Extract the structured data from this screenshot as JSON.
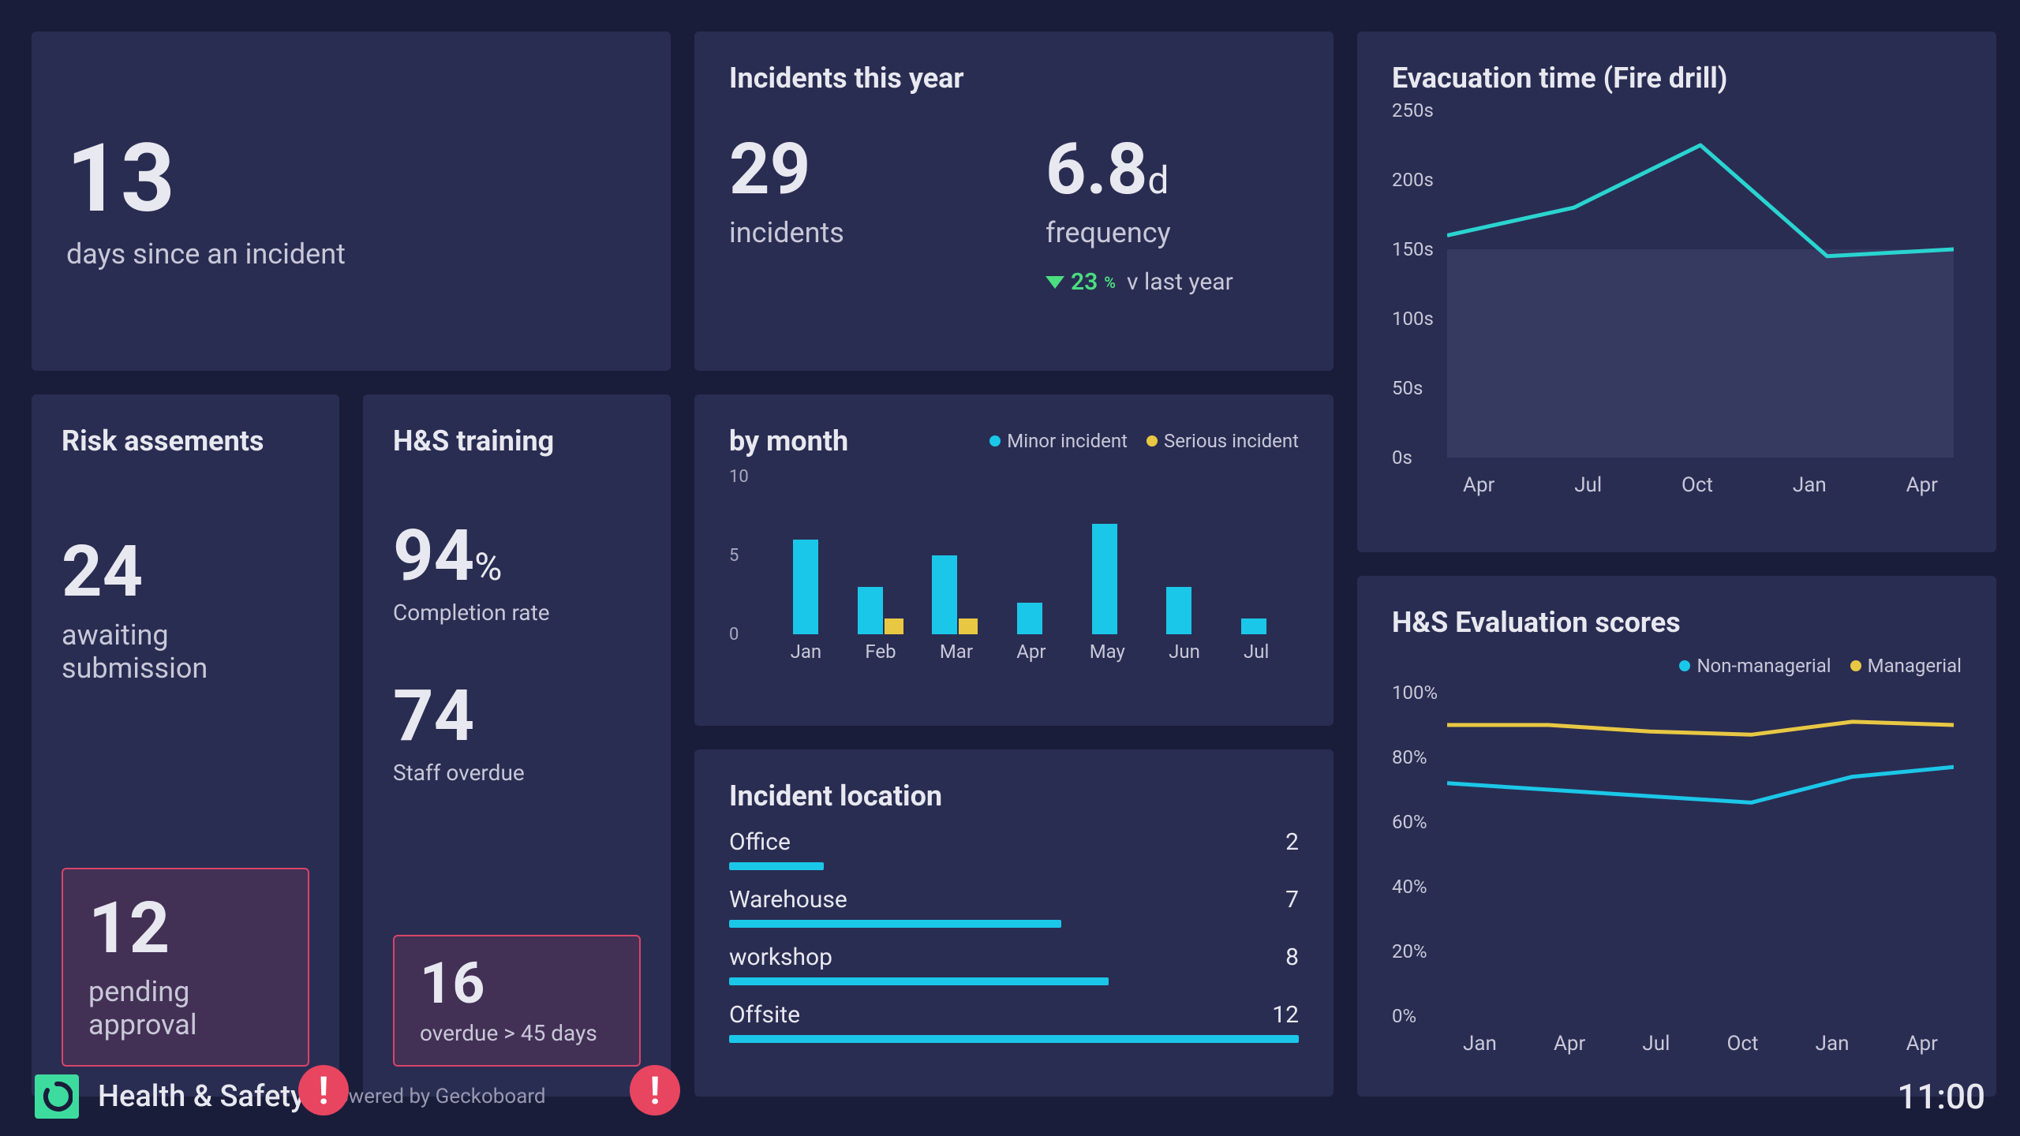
{
  "colors": {
    "card_bg": "#2a2d52",
    "page_bg": "#1a1d3a",
    "text": "#e8e8f0",
    "muted": "#c8c8d8",
    "cyan": "#1bc7e8",
    "yellow": "#e8c843",
    "green": "#4ade80",
    "alert": "#e84560",
    "alert_border": "#d9446b"
  },
  "days_since": {
    "value": "13",
    "label": "days since an incident"
  },
  "incidents_year": {
    "title": "Incidents this year",
    "count": "29",
    "count_label": "incidents",
    "freq": "6.8",
    "freq_unit": "d",
    "freq_label": "frequency",
    "delta_value": "23",
    "delta_pct": "%",
    "delta_suffix": "v last year"
  },
  "risk": {
    "title": "Risk assements",
    "awaiting_value": "24",
    "awaiting_label": "awaiting submission",
    "pending_value": "12",
    "pending_label": "pending approval"
  },
  "training": {
    "title": "H&S training",
    "completion_value": "94",
    "completion_pct": "%",
    "completion_label": "Completion rate",
    "overdue_value": "74",
    "overdue_label": "Staff overdue",
    "critical_value": "16",
    "critical_label": "overdue > 45 days"
  },
  "by_month": {
    "title": "by month",
    "type": "bar",
    "y_max": 10,
    "y_ticks": [
      "0",
      "5",
      "10"
    ],
    "categories": [
      "Jan",
      "Feb",
      "Mar",
      "Apr",
      "May",
      "Jun",
      "Jul"
    ],
    "minor": [
      6,
      3,
      5,
      2,
      7,
      3,
      1
    ],
    "serious": [
      0,
      1,
      1,
      0,
      0,
      0,
      0
    ],
    "minor_color": "#1bc7e8",
    "serious_color": "#e8c843",
    "legend_minor": "Minor incident",
    "legend_serious": "Serious incident"
  },
  "locations": {
    "title": "Incident location",
    "max": 12,
    "bar_color": "#1bc7e8",
    "items": [
      {
        "label": "Office",
        "value": 2
      },
      {
        "label": "Warehouse",
        "value": 7
      },
      {
        "label": "workshop",
        "value": 8
      },
      {
        "label": "Offsite",
        "value": 12
      }
    ]
  },
  "evacuation": {
    "title": "Evacuation time (Fire drill)",
    "type": "line",
    "y_ticks": [
      "0s",
      "50s",
      "100s",
      "150s",
      "200s",
      "250s"
    ],
    "y_max": 250,
    "shade_from": 0,
    "shade_to": 150,
    "x_labels": [
      "Apr",
      "Jul",
      "Oct",
      "Jan",
      "Apr"
    ],
    "line_color": "#2ad4d0",
    "points": [
      {
        "x": 0,
        "y": 160
      },
      {
        "x": 1,
        "y": 180
      },
      {
        "x": 2,
        "y": 225
      },
      {
        "x": 3,
        "y": 145
      },
      {
        "x": 4,
        "y": 150
      }
    ]
  },
  "hs_eval": {
    "title": "H&S Evaluation scores",
    "type": "line",
    "y_ticks": [
      "0%",
      "20%",
      "40%",
      "60%",
      "80%",
      "100%"
    ],
    "y_max": 100,
    "x_labels": [
      "Jan",
      "Apr",
      "Jul",
      "Oct",
      "Jan",
      "Apr"
    ],
    "legend_a": "Non-managerial",
    "legend_b": "Managerial",
    "color_a": "#1bc7e8",
    "color_b": "#e8c843",
    "series_a": [
      72,
      70,
      68,
      66,
      74,
      77
    ],
    "series_b": [
      90,
      90,
      88,
      87,
      91,
      90
    ]
  },
  "footer": {
    "title": "Health & Safety",
    "powered": "Powered by Geckoboard",
    "time": "11:00"
  }
}
